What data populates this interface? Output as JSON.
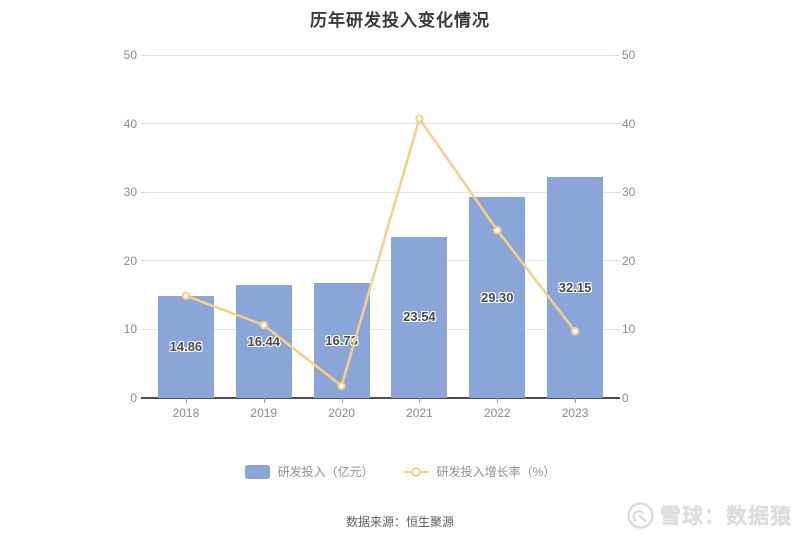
{
  "title": "历年研发投入变化情况",
  "source": "数据来源：恒生聚源",
  "watermark": "雪球：数据猿",
  "legend": {
    "bar": "研发投入（亿元）",
    "line": "研发投入增长率（%）"
  },
  "colors": {
    "bar": "#8aa6d8",
    "line": "#f9cf85",
    "grid": "#dce6f5",
    "axis_line": "#4d4d4d",
    "axis_label": "#8c8c8c",
    "bar_label": "#4a4a4a",
    "legend_text": "#919191",
    "source_text": "#5e5e5e",
    "watermark_text": "#dcdcdc",
    "background": "#ffffff"
  },
  "chart_data": {
    "type": "bar",
    "categories": [
      "2018",
      "2019",
      "2020",
      "2021",
      "2022",
      "2023"
    ],
    "series": [
      {
        "name": "研发投入（亿元）",
        "type": "bar",
        "axis": "left",
        "values": [
          14.86,
          16.44,
          16.73,
          23.54,
          29.3,
          32.15
        ],
        "labels": [
          "14.86",
          "16.44",
          "16.73",
          "23.54",
          "29.30",
          "32.15"
        ]
      },
      {
        "name": "研发投入增长率（%）",
        "type": "line",
        "axis": "right",
        "values": [
          14.9,
          10.63,
          1.76,
          40.71,
          24.47,
          9.73
        ]
      }
    ],
    "y_left": {
      "label": "",
      "min": 0,
      "max": 50,
      "ticks": [
        0,
        10,
        20,
        30,
        40,
        50
      ]
    },
    "y_right": {
      "label": "",
      "min": 0,
      "max": 50,
      "ticks": [
        0,
        10,
        20,
        30,
        40,
        50
      ]
    },
    "grid": true,
    "legend_position": "bottom",
    "title": "历年研发投入变化情况"
  }
}
